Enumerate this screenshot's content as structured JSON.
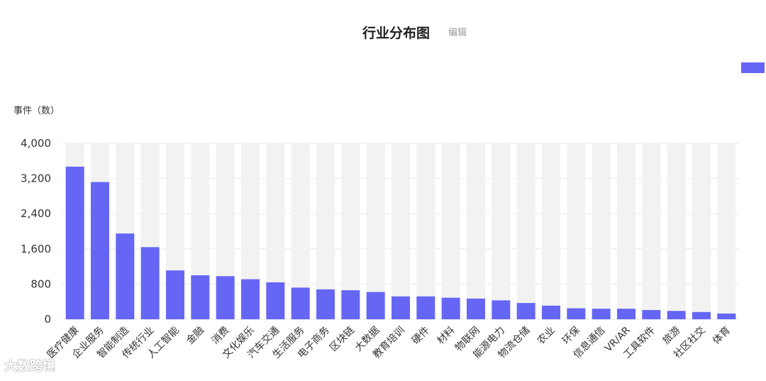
{
  "header": {
    "title": "行业分布图",
    "edit_label": "编辑"
  },
  "watermark": {
    "brand": "大数跨境"
  },
  "colors": {
    "bar": "#6666f5",
    "track": "#f2f2f2",
    "text": "#333333"
  },
  "chart_data": {
    "type": "bar",
    "ylabel": "事件（数）",
    "ylim": [
      0,
      4000
    ],
    "yticks": [
      0,
      800,
      1600,
      2400,
      3200,
      4000
    ],
    "ytick_labels": [
      "0",
      "800",
      "1,600",
      "2,400",
      "3,200",
      "4,000"
    ],
    "grid": true,
    "background_track": true,
    "categories": [
      "医疗健康",
      "企业服务",
      "智能制造",
      "传统行业",
      "人工智能",
      "金融",
      "消费",
      "文化娱乐",
      "汽车交通",
      "生活服务",
      "电子商务",
      "区块链",
      "大数据",
      "教育培训",
      "硬件",
      "材料",
      "物联网",
      "能源电力",
      "物流仓储",
      "农业",
      "环保",
      "信息通信",
      "VR/AR",
      "工具软件",
      "旅游",
      "社区社交",
      "体育"
    ],
    "values": [
      3470,
      3120,
      1950,
      1640,
      1110,
      1000,
      980,
      910,
      840,
      720,
      680,
      660,
      620,
      520,
      520,
      490,
      470,
      430,
      370,
      310,
      250,
      240,
      240,
      210,
      190,
      165,
      130
    ]
  }
}
